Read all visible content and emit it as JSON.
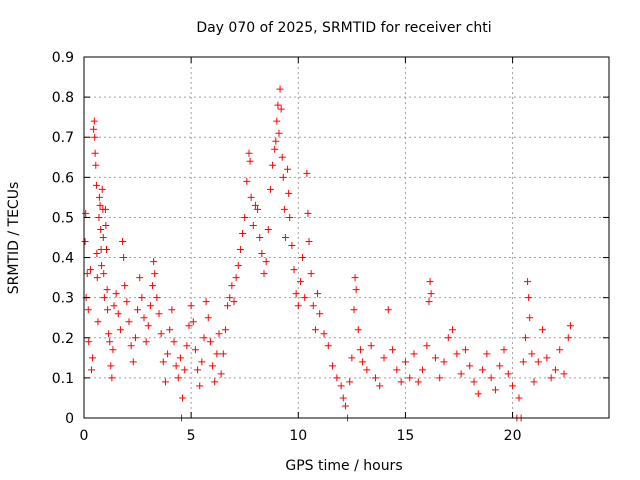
{
  "chart_data": {
    "type": "scatter",
    "title": "Day 070 of 2025, SRMTID for receiver chti",
    "xlabel": "GPS time / hours",
    "ylabel": "SRMTID / TECUs",
    "xlim": [
      0,
      24.5
    ],
    "ylim": [
      0,
      0.9
    ],
    "x_ticks": [
      "0",
      "5",
      "10",
      "15",
      "20"
    ],
    "x_tick_values": [
      0,
      5,
      10,
      15,
      20
    ],
    "y_ticks": [
      "0",
      "0.1",
      "0.2",
      "0.3",
      "0.4",
      "0.5",
      "0.6",
      "0.7",
      "0.8",
      "0.9"
    ],
    "y_tick_values": [
      0,
      0.1,
      0.2,
      0.3,
      0.4,
      0.5,
      0.6,
      0.7,
      0.8,
      0.9
    ],
    "grid": true,
    "marker": "+",
    "series": [
      {
        "name": "SRMTID",
        "color": "#ff0000",
        "points": [
          [
            0.05,
            0.44
          ],
          [
            0.08,
            0.51
          ],
          [
            0.1,
            0.3
          ],
          [
            0.15,
            0.36
          ],
          [
            0.2,
            0.27
          ],
          [
            0.22,
            0.19
          ],
          [
            0.3,
            0.37
          ],
          [
            0.35,
            0.12
          ],
          [
            0.4,
            0.15
          ],
          [
            0.45,
            0.72
          ],
          [
            0.48,
            0.74
          ],
          [
            0.5,
            0.7
          ],
          [
            0.52,
            0.66
          ],
          [
            0.55,
            0.63
          ],
          [
            0.58,
            0.58
          ],
          [
            0.6,
            0.41
          ],
          [
            0.62,
            0.35
          ],
          [
            0.65,
            0.24
          ],
          [
            0.7,
            0.5
          ],
          [
            0.72,
            0.55
          ],
          [
            0.75,
            0.53
          ],
          [
            0.78,
            0.47
          ],
          [
            0.8,
            0.42
          ],
          [
            0.82,
            0.38
          ],
          [
            0.85,
            0.57
          ],
          [
            0.88,
            0.52
          ],
          [
            0.9,
            0.45
          ],
          [
            0.92,
            0.36
          ],
          [
            0.95,
            0.3
          ],
          [
            1.0,
            0.52
          ],
          [
            1.02,
            0.48
          ],
          [
            1.05,
            0.42
          ],
          [
            1.08,
            0.32
          ],
          [
            1.1,
            0.27
          ],
          [
            1.15,
            0.21
          ],
          [
            1.2,
            0.19
          ],
          [
            1.25,
            0.13
          ],
          [
            1.3,
            0.1
          ],
          [
            1.35,
            0.17
          ],
          [
            1.4,
            0.28
          ],
          [
            1.5,
            0.31
          ],
          [
            1.6,
            0.26
          ],
          [
            1.7,
            0.22
          ],
          [
            1.8,
            0.44
          ],
          [
            1.85,
            0.4
          ],
          [
            1.9,
            0.33
          ],
          [
            2.0,
            0.29
          ],
          [
            2.1,
            0.24
          ],
          [
            2.2,
            0.18
          ],
          [
            2.3,
            0.14
          ],
          [
            2.4,
            0.2
          ],
          [
            2.5,
            0.27
          ],
          [
            2.6,
            0.35
          ],
          [
            2.7,
            0.3
          ],
          [
            2.8,
            0.25
          ],
          [
            2.9,
            0.19
          ],
          [
            3.0,
            0.23
          ],
          [
            3.1,
            0.28
          ],
          [
            3.2,
            0.33
          ],
          [
            3.25,
            0.39
          ],
          [
            3.3,
            0.36
          ],
          [
            3.4,
            0.3
          ],
          [
            3.5,
            0.26
          ],
          [
            3.6,
            0.21
          ],
          [
            3.7,
            0.14
          ],
          [
            3.8,
            0.09
          ],
          [
            3.9,
            0.16
          ],
          [
            4.0,
            0.22
          ],
          [
            4.1,
            0.27
          ],
          [
            4.2,
            0.19
          ],
          [
            4.3,
            0.13
          ],
          [
            4.4,
            0.1
          ],
          [
            4.5,
            0.15
          ],
          [
            4.55,
            0.0
          ],
          [
            4.6,
            0.05
          ],
          [
            4.7,
            0.12
          ],
          [
            4.8,
            0.18
          ],
          [
            4.9,
            0.23
          ],
          [
            5.0,
            0.28
          ],
          [
            5.1,
            0.24
          ],
          [
            5.2,
            0.17
          ],
          [
            5.3,
            0.12
          ],
          [
            5.4,
            0.08
          ],
          [
            5.5,
            0.14
          ],
          [
            5.6,
            0.2
          ],
          [
            5.7,
            0.29
          ],
          [
            5.8,
            0.25
          ],
          [
            5.9,
            0.19
          ],
          [
            6.0,
            0.13
          ],
          [
            6.1,
            0.09
          ],
          [
            6.2,
            0.16
          ],
          [
            6.3,
            0.21
          ],
          [
            6.4,
            0.11
          ],
          [
            6.5,
            0.16
          ],
          [
            6.6,
            0.22
          ],
          [
            6.7,
            0.28
          ],
          [
            6.8,
            0.3
          ],
          [
            6.9,
            0.33
          ],
          [
            7.0,
            0.29
          ],
          [
            7.1,
            0.35
          ],
          [
            7.2,
            0.38
          ],
          [
            7.3,
            0.42
          ],
          [
            7.4,
            0.46
          ],
          [
            7.5,
            0.5
          ],
          [
            7.6,
            0.59
          ],
          [
            7.7,
            0.66
          ],
          [
            7.75,
            0.64
          ],
          [
            7.8,
            0.55
          ],
          [
            7.9,
            0.48
          ],
          [
            8.0,
            0.53
          ],
          [
            8.1,
            0.52
          ],
          [
            8.2,
            0.45
          ],
          [
            8.3,
            0.41
          ],
          [
            8.4,
            0.36
          ],
          [
            8.5,
            0.39
          ],
          [
            8.6,
            0.47
          ],
          [
            8.7,
            0.57
          ],
          [
            8.8,
            0.63
          ],
          [
            8.9,
            0.67
          ],
          [
            8.95,
            0.69
          ],
          [
            9.0,
            0.74
          ],
          [
            9.05,
            0.78
          ],
          [
            9.1,
            0.71
          ],
          [
            9.15,
            0.82
          ],
          [
            9.2,
            0.77
          ],
          [
            9.25,
            0.65
          ],
          [
            9.3,
            0.6
          ],
          [
            9.35,
            0.52
          ],
          [
            9.4,
            0.45
          ],
          [
            9.5,
            0.62
          ],
          [
            9.55,
            0.56
          ],
          [
            9.6,
            0.5
          ],
          [
            9.7,
            0.43
          ],
          [
            9.8,
            0.37
          ],
          [
            9.9,
            0.31
          ],
          [
            10.0,
            0.28
          ],
          [
            10.1,
            0.34
          ],
          [
            10.2,
            0.4
          ],
          [
            10.3,
            0.3
          ],
          [
            10.4,
            0.61
          ],
          [
            10.45,
            0.51
          ],
          [
            10.5,
            0.44
          ],
          [
            10.6,
            0.36
          ],
          [
            10.7,
            0.28
          ],
          [
            10.8,
            0.22
          ],
          [
            10.9,
            0.31
          ],
          [
            11.0,
            0.26
          ],
          [
            11.2,
            0.21
          ],
          [
            11.4,
            0.18
          ],
          [
            11.6,
            0.13
          ],
          [
            11.8,
            0.1
          ],
          [
            12.0,
            0.08
          ],
          [
            12.1,
            0.05
          ],
          [
            12.2,
            0.03
          ],
          [
            12.3,
            0.0
          ],
          [
            12.4,
            0.09
          ],
          [
            12.5,
            0.15
          ],
          [
            12.6,
            0.27
          ],
          [
            12.65,
            0.35
          ],
          [
            12.7,
            0.32
          ],
          [
            12.8,
            0.22
          ],
          [
            12.9,
            0.17
          ],
          [
            13.0,
            0.14
          ],
          [
            13.2,
            0.12
          ],
          [
            13.4,
            0.18
          ],
          [
            13.6,
            0.1
          ],
          [
            13.8,
            0.08
          ],
          [
            14.0,
            0.15
          ],
          [
            14.2,
            0.27
          ],
          [
            14.4,
            0.17
          ],
          [
            14.6,
            0.12
          ],
          [
            14.8,
            0.09
          ],
          [
            15.0,
            0.14
          ],
          [
            15.2,
            0.1
          ],
          [
            15.4,
            0.16
          ],
          [
            15.6,
            0.09
          ],
          [
            15.8,
            0.12
          ],
          [
            16.0,
            0.18
          ],
          [
            16.1,
            0.29
          ],
          [
            16.15,
            0.34
          ],
          [
            16.2,
            0.31
          ],
          [
            16.4,
            0.15
          ],
          [
            16.6,
            0.1
          ],
          [
            16.8,
            0.14
          ],
          [
            17.0,
            0.2
          ],
          [
            17.2,
            0.22
          ],
          [
            17.4,
            0.16
          ],
          [
            17.6,
            0.11
          ],
          [
            17.8,
            0.17
          ],
          [
            18.0,
            0.13
          ],
          [
            18.2,
            0.09
          ],
          [
            18.4,
            0.06
          ],
          [
            18.6,
            0.12
          ],
          [
            18.8,
            0.16
          ],
          [
            19.0,
            0.1
          ],
          [
            19.2,
            0.07
          ],
          [
            19.4,
            0.13
          ],
          [
            19.6,
            0.17
          ],
          [
            19.8,
            0.11
          ],
          [
            20.0,
            0.08
          ],
          [
            20.2,
            0.0
          ],
          [
            20.3,
            0.05
          ],
          [
            20.4,
            0.0
          ],
          [
            20.5,
            0.14
          ],
          [
            20.6,
            0.2
          ],
          [
            20.7,
            0.34
          ],
          [
            20.75,
            0.3
          ],
          [
            20.8,
            0.25
          ],
          [
            20.9,
            0.16
          ],
          [
            21.0,
            0.09
          ],
          [
            21.2,
            0.14
          ],
          [
            21.4,
            0.22
          ],
          [
            21.6,
            0.15
          ],
          [
            21.8,
            0.1
          ],
          [
            22.0,
            0.12
          ],
          [
            22.2,
            0.17
          ],
          [
            22.4,
            0.11
          ],
          [
            22.6,
            0.2
          ],
          [
            22.7,
            0.23
          ]
        ]
      }
    ]
  }
}
